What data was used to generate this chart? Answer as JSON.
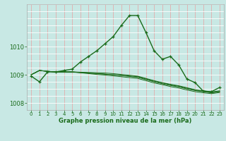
{
  "title": "Graphe pression niveau de la mer (hPa)",
  "bg_color": "#c8e8e4",
  "vgrid_color": "#e8a0a0",
  "hgrid_color": "#ffffff",
  "line_color": "#1a6b1a",
  "xlim": [
    -0.5,
    23.5
  ],
  "ylim": [
    1007.75,
    1011.5
  ],
  "yticks": [
    1008,
    1009,
    1010
  ],
  "xticks": [
    0,
    1,
    2,
    3,
    4,
    5,
    6,
    7,
    8,
    9,
    10,
    11,
    12,
    13,
    14,
    15,
    16,
    17,
    18,
    19,
    20,
    21,
    22,
    23
  ],
  "series_main": [
    1008.95,
    1008.75,
    1009.1,
    1009.1,
    1009.15,
    1009.2,
    1009.45,
    1009.65,
    1009.85,
    1010.1,
    1010.35,
    1010.75,
    1011.1,
    1011.1,
    1010.5,
    1009.85,
    1009.55,
    1009.65,
    1009.35,
    1008.85,
    1008.72,
    1008.42,
    1008.4,
    1008.55
  ],
  "series_flat": [
    [
      1009.0,
      1009.15,
      1009.12,
      1009.1,
      1009.1,
      1009.1,
      1009.08,
      1009.06,
      1009.04,
      1009.02,
      1009.0,
      1008.97,
      1008.94,
      1008.91,
      1008.83,
      1008.75,
      1008.68,
      1008.62,
      1008.57,
      1008.5,
      1008.44,
      1008.4,
      1008.36,
      1008.4
    ],
    [
      1009.0,
      1009.15,
      1009.12,
      1009.1,
      1009.1,
      1009.1,
      1009.07,
      1009.04,
      1009.01,
      1008.99,
      1008.96,
      1008.93,
      1008.9,
      1008.87,
      1008.79,
      1008.71,
      1008.65,
      1008.58,
      1008.53,
      1008.46,
      1008.4,
      1008.36,
      1008.33,
      1008.37
    ],
    [
      1009.0,
      1009.15,
      1009.12,
      1009.1,
      1009.1,
      1009.1,
      1009.09,
      1009.08,
      1009.07,
      1009.06,
      1009.04,
      1009.01,
      1008.98,
      1008.95,
      1008.87,
      1008.79,
      1008.72,
      1008.66,
      1008.61,
      1008.54,
      1008.47,
      1008.43,
      1008.39,
      1008.43
    ],
    [
      1009.0,
      1009.15,
      1009.12,
      1009.1,
      1009.1,
      1009.09,
      1009.08,
      1009.06,
      1009.04,
      1009.02,
      1009.0,
      1008.98,
      1008.96,
      1008.93,
      1008.85,
      1008.77,
      1008.71,
      1008.64,
      1008.59,
      1008.52,
      1008.46,
      1008.41,
      1008.37,
      1008.41
    ]
  ]
}
